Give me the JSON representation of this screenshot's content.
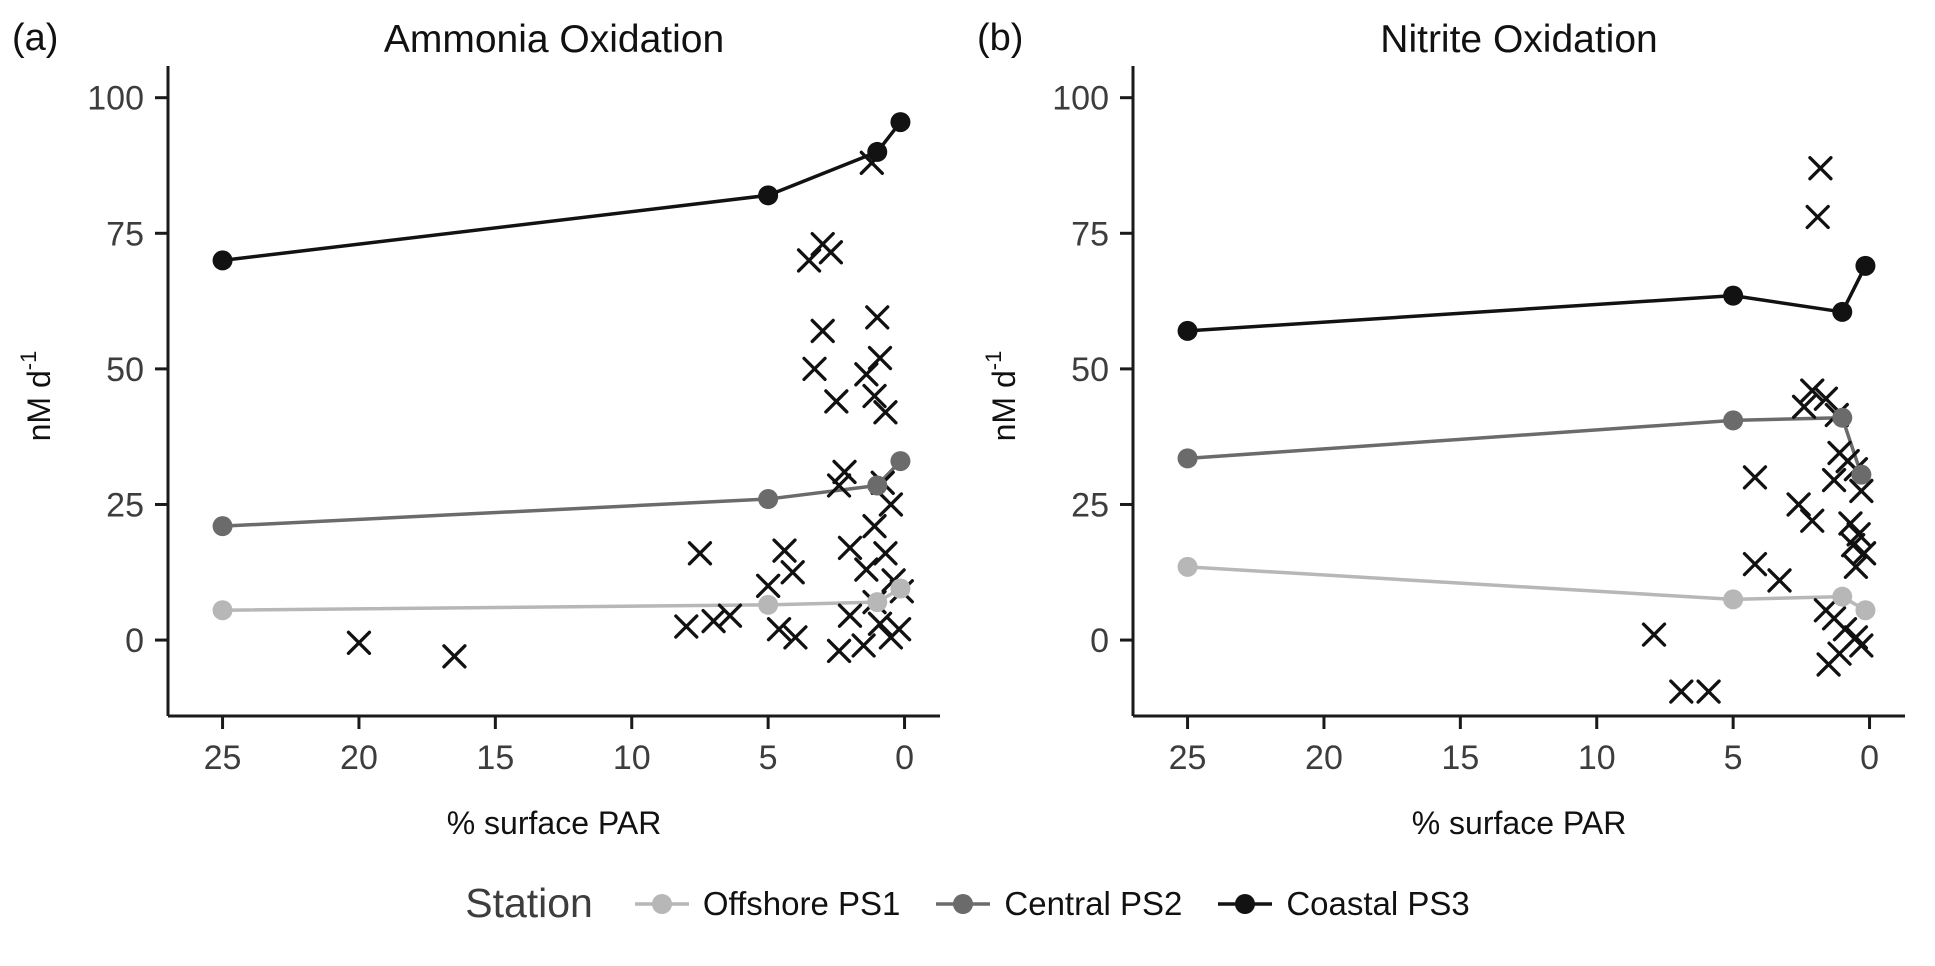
{
  "legend": {
    "title": "Station",
    "entries": [
      {
        "label": "Offshore PS1",
        "color": "#b7b7b7"
      },
      {
        "label": "Central PS2",
        "color": "#6b6b6b"
      },
      {
        "label": "Coastal PS3",
        "color": "#121212"
      }
    ]
  },
  "chart_data": [
    {
      "type": "scatter",
      "panel_tag": "(a)",
      "title": "Ammonia Oxidation",
      "xlabel": "% surface PAR",
      "ylabel": "nM d⁻¹",
      "x_axis": {
        "ticks": [
          25,
          20,
          15,
          10,
          5,
          0
        ],
        "reversed": true,
        "domain": [
          27,
          -1.3
        ]
      },
      "y_axis": {
        "ticks": [
          0,
          25,
          50,
          75,
          100
        ],
        "domain": [
          -14,
          104
        ]
      },
      "grid": false,
      "series": [
        {
          "name": "Offshore PS1",
          "marker": "circle-line",
          "color": "#b7b7b7",
          "points": [
            [
              25,
              5.5
            ],
            [
              5,
              6.5
            ],
            [
              1,
              7
            ],
            [
              0.15,
              9.5
            ]
          ]
        },
        {
          "name": "Central PS2",
          "marker": "circle-line",
          "color": "#6b6b6b",
          "points": [
            [
              25,
              21
            ],
            [
              5,
              26
            ],
            [
              1,
              28.5
            ],
            [
              0.15,
              33
            ]
          ]
        },
        {
          "name": "Coastal PS3",
          "marker": "circle-line",
          "color": "#121212",
          "points": [
            [
              25,
              70
            ],
            [
              5,
              82
            ],
            [
              1,
              90
            ],
            [
              0.15,
              95.5
            ]
          ]
        }
      ],
      "x_markers": {
        "name": "replicate-measurements",
        "marker": "x",
        "color": "#111111",
        "points": [
          [
            20,
            -0.5
          ],
          [
            16.5,
            -3
          ],
          [
            7.5,
            16
          ],
          [
            8,
            2.5
          ],
          [
            7,
            3.5
          ],
          [
            6.4,
            4.5
          ],
          [
            5,
            10
          ],
          [
            4.6,
            2
          ],
          [
            4,
            0.5
          ],
          [
            3.5,
            70
          ],
          [
            3,
            73
          ],
          [
            2.7,
            71.5
          ],
          [
            3,
            57
          ],
          [
            3.3,
            50
          ],
          [
            2.5,
            44
          ],
          [
            4.4,
            16.5
          ],
          [
            4.1,
            12.5
          ],
          [
            2.2,
            31
          ],
          [
            2.4,
            28.5
          ],
          [
            1,
            59.5
          ],
          [
            0.9,
            52
          ],
          [
            1.4,
            49
          ],
          [
            1.1,
            45
          ],
          [
            0.7,
            42
          ],
          [
            1.2,
            88
          ],
          [
            0.8,
            29
          ],
          [
            0.5,
            25
          ],
          [
            1.1,
            21
          ],
          [
            2,
            17
          ],
          [
            0.7,
            16
          ],
          [
            1.4,
            13
          ],
          [
            0.4,
            11
          ],
          [
            0.1,
            9
          ],
          [
            1.1,
            7
          ],
          [
            2,
            4.5
          ],
          [
            0.9,
            3
          ],
          [
            0.2,
            2
          ],
          [
            0.5,
            0.5
          ],
          [
            1.5,
            -1
          ],
          [
            2.4,
            -2
          ]
        ]
      }
    },
    {
      "type": "scatter",
      "panel_tag": "(b)",
      "title": "Nitrite Oxidation",
      "xlabel": "% surface PAR",
      "ylabel": "nM d⁻¹",
      "x_axis": {
        "ticks": [
          25,
          20,
          15,
          10,
          5,
          0
        ],
        "reversed": true,
        "domain": [
          27,
          -1.3
        ]
      },
      "y_axis": {
        "ticks": [
          0,
          25,
          50,
          75,
          100
        ],
        "domain": [
          -14,
          104
        ]
      },
      "grid": false,
      "series": [
        {
          "name": "Offshore PS1",
          "marker": "circle-line",
          "color": "#b7b7b7",
          "points": [
            [
              25,
              13.5
            ],
            [
              5,
              7.5
            ],
            [
              1,
              8
            ],
            [
              0.15,
              5.5
            ]
          ]
        },
        {
          "name": "Central PS2",
          "marker": "circle-line",
          "color": "#6b6b6b",
          "points": [
            [
              25,
              33.5
            ],
            [
              5,
              40.5
            ],
            [
              1,
              41
            ],
            [
              0.3,
              30.5
            ]
          ]
        },
        {
          "name": "Coastal PS3",
          "marker": "circle-line",
          "color": "#121212",
          "points": [
            [
              25,
              57
            ],
            [
              5,
              63.5
            ],
            [
              1,
              60.5
            ],
            [
              0.15,
              69
            ]
          ]
        }
      ],
      "x_markers": {
        "name": "replicate-measurements",
        "marker": "x",
        "color": "#111111",
        "points": [
          [
            1.8,
            87
          ],
          [
            1.9,
            78
          ],
          [
            2.1,
            46
          ],
          [
            1.6,
            44.5
          ],
          [
            2.4,
            43
          ],
          [
            1.2,
            41.5
          ],
          [
            4.2,
            30
          ],
          [
            1.1,
            34.5
          ],
          [
            0.8,
            33
          ],
          [
            0.5,
            31.5
          ],
          [
            1.3,
            29.5
          ],
          [
            0.3,
            27.5
          ],
          [
            2.6,
            25
          ],
          [
            2.1,
            22
          ],
          [
            0.7,
            21.5
          ],
          [
            0.4,
            19.5
          ],
          [
            0.6,
            17.5
          ],
          [
            0.2,
            16
          ],
          [
            0.5,
            13.5
          ],
          [
            4.2,
            14
          ],
          [
            3.3,
            11
          ],
          [
            7.9,
            1
          ],
          [
            1.6,
            5.5
          ],
          [
            1.3,
            4
          ],
          [
            0.9,
            2
          ],
          [
            0.5,
            0.5
          ],
          [
            0.3,
            -1
          ],
          [
            1.1,
            -2.5
          ],
          [
            1.5,
            -4.5
          ],
          [
            6.9,
            -9.5
          ],
          [
            5.9,
            -9.5
          ]
        ]
      }
    }
  ]
}
